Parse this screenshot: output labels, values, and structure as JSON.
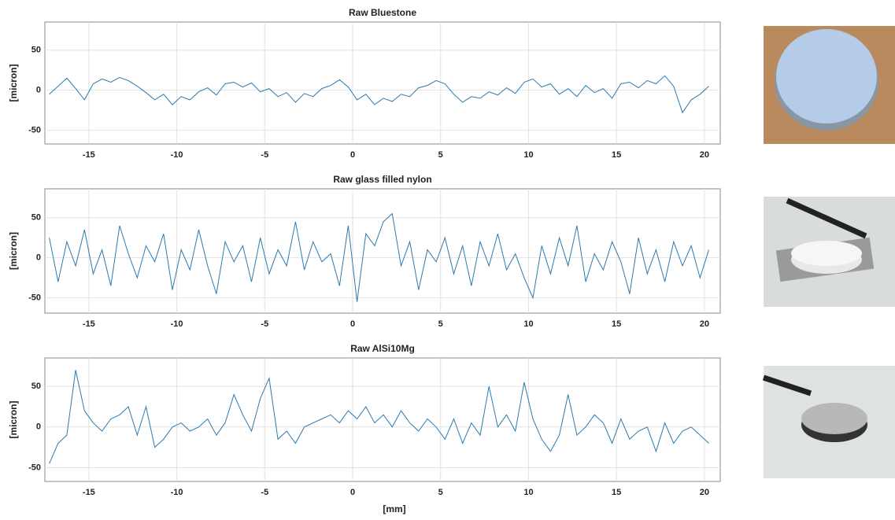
{
  "chart_data": [
    {
      "type": "line",
      "title": "Raw Bluestone",
      "ylabel": "[micron]",
      "color": "#2a7ab0",
      "grid": true,
      "xlim": [
        -17.5,
        20.9
      ],
      "ylim": [
        -67,
        85
      ],
      "xticks": [
        -15,
        -10,
        -5,
        0,
        5,
        10,
        15,
        20
      ],
      "yticks": [
        -50,
        0,
        50
      ],
      "x": [
        -17.25,
        -16.75,
        -16.25,
        -15.75,
        -15.25,
        -14.75,
        -14.25,
        -13.75,
        -13.25,
        -12.75,
        -12.25,
        -11.75,
        -11.25,
        -10.75,
        -10.25,
        -9.75,
        -9.25,
        -8.75,
        -8.25,
        -7.75,
        -7.25,
        -6.75,
        -6.25,
        -5.75,
        -5.25,
        -4.75,
        -4.25,
        -3.75,
        -3.25,
        -2.75,
        -2.25,
        -1.75,
        -1.25,
        -0.75,
        -0.25,
        0.25,
        0.75,
        1.25,
        1.75,
        2.25,
        2.75,
        3.25,
        3.75,
        4.25,
        4.75,
        5.25,
        5.75,
        6.25,
        6.75,
        7.25,
        7.75,
        8.25,
        8.75,
        9.25,
        9.75,
        10.25,
        10.75,
        11.25,
        11.75,
        12.25,
        12.75,
        13.25,
        13.75,
        14.25,
        14.75,
        15.25,
        15.75,
        16.25,
        16.75,
        17.25,
        17.75,
        18.25,
        18.75,
        19.25,
        19.75,
        20.25
      ],
      "values": [
        -5,
        5,
        15,
        2,
        -12,
        8,
        14,
        10,
        16,
        12,
        5,
        -3,
        -12,
        -5,
        -18,
        -8,
        -12,
        -2,
        3,
        -6,
        8,
        10,
        4,
        9,
        -2,
        2,
        -8,
        -3,
        -15,
        -4,
        -8,
        2,
        6,
        13,
        4,
        -12,
        -5,
        -18,
        -10,
        -14,
        -5,
        -8,
        3,
        6,
        12,
        8,
        -5,
        -15,
        -8,
        -10,
        -2,
        -6,
        3,
        -4,
        10,
        14,
        4,
        8,
        -5,
        2,
        -8,
        6,
        -3,
        2,
        -10,
        8,
        10,
        3,
        12,
        8,
        18,
        5,
        -28,
        -12,
        -5,
        5
      ]
    },
    {
      "type": "line",
      "title": "Raw glass filled nylon",
      "ylabel": "[micron]",
      "color": "#2a7ab0",
      "grid": true,
      "xlim": [
        -17.5,
        20.9
      ],
      "ylim": [
        -69,
        86
      ],
      "xticks": [
        -15,
        -10,
        -5,
        0,
        5,
        10,
        15,
        20
      ],
      "yticks": [
        -50,
        0,
        50
      ],
      "x": [
        -17.25,
        -16.75,
        -16.25,
        -15.75,
        -15.25,
        -14.75,
        -14.25,
        -13.75,
        -13.25,
        -12.75,
        -12.25,
        -11.75,
        -11.25,
        -10.75,
        -10.25,
        -9.75,
        -9.25,
        -8.75,
        -8.25,
        -7.75,
        -7.25,
        -6.75,
        -6.25,
        -5.75,
        -5.25,
        -4.75,
        -4.25,
        -3.75,
        -3.25,
        -2.75,
        -2.25,
        -1.75,
        -1.25,
        -0.75,
        -0.25,
        0.25,
        0.75,
        1.25,
        1.75,
        2.25,
        2.75,
        3.25,
        3.75,
        4.25,
        4.75,
        5.25,
        5.75,
        6.25,
        6.75,
        7.25,
        7.75,
        8.25,
        8.75,
        9.25,
        9.75,
        10.25,
        10.75,
        11.25,
        11.75,
        12.25,
        12.75,
        13.25,
        13.75,
        14.25,
        14.75,
        15.25,
        15.75,
        16.25,
        16.75,
        17.25,
        17.75,
        18.25,
        18.75,
        19.25,
        19.75,
        20.25
      ],
      "values": [
        25,
        -30,
        20,
        -10,
        35,
        -20,
        10,
        -35,
        40,
        5,
        -25,
        15,
        -5,
        30,
        -40,
        10,
        -15,
        35,
        -10,
        -45,
        20,
        -5,
        15,
        -30,
        25,
        -20,
        10,
        -10,
        45,
        -15,
        20,
        -5,
        5,
        -35,
        40,
        -55,
        30,
        15,
        45,
        55,
        -10,
        20,
        -40,
        10,
        -5,
        25,
        -20,
        15,
        -35,
        20,
        -10,
        30,
        -15,
        5,
        -25,
        -50,
        15,
        -20,
        25,
        -10,
        40,
        -30,
        5,
        -15,
        20,
        -5,
        -45,
        25,
        -20,
        10,
        -30,
        20,
        -10,
        15,
        -25,
        10
      ]
    },
    {
      "type": "line",
      "title": "Raw AlSi10Mg",
      "ylabel": "[micron]",
      "xlabel": "[mm]",
      "color": "#2a7ab0",
      "grid": true,
      "xlim": [
        -17.5,
        20.9
      ],
      "ylim": [
        -67,
        85
      ],
      "xticks": [
        -15,
        -10,
        -5,
        0,
        5,
        10,
        15,
        20
      ],
      "yticks": [
        -50,
        0,
        50
      ],
      "x": [
        -17.25,
        -16.75,
        -16.25,
        -15.75,
        -15.25,
        -14.75,
        -14.25,
        -13.75,
        -13.25,
        -12.75,
        -12.25,
        -11.75,
        -11.25,
        -10.75,
        -10.25,
        -9.75,
        -9.25,
        -8.75,
        -8.25,
        -7.75,
        -7.25,
        -6.75,
        -6.25,
        -5.75,
        -5.25,
        -4.75,
        -4.25,
        -3.75,
        -3.25,
        -2.75,
        -2.25,
        -1.75,
        -1.25,
        -0.75,
        -0.25,
        0.25,
        0.75,
        1.25,
        1.75,
        2.25,
        2.75,
        3.25,
        3.75,
        4.25,
        4.75,
        5.25,
        5.75,
        6.25,
        6.75,
        7.25,
        7.75,
        8.25,
        8.75,
        9.25,
        9.75,
        10.25,
        10.75,
        11.25,
        11.75,
        12.25,
        12.75,
        13.25,
        13.75,
        14.25,
        14.75,
        15.25,
        15.75,
        16.25,
        16.75,
        17.25,
        17.75,
        18.25,
        18.75,
        19.25,
        19.75,
        20.25
      ],
      "values": [
        -45,
        -20,
        -10,
        70,
        20,
        5,
        -5,
        10,
        15,
        25,
        -10,
        25,
        -25,
        -15,
        0,
        5,
        -5,
        0,
        10,
        -10,
        5,
        40,
        15,
        -5,
        35,
        60,
        -15,
        -5,
        -20,
        0,
        5,
        10,
        15,
        5,
        20,
        10,
        25,
        5,
        15,
        0,
        20,
        5,
        -5,
        10,
        0,
        -15,
        10,
        -20,
        5,
        -10,
        50,
        0,
        15,
        -5,
        55,
        10,
        -15,
        -30,
        -10,
        40,
        -10,
        0,
        15,
        5,
        -20,
        10,
        -15,
        -5,
        0,
        -30,
        5,
        -20,
        -5,
        0,
        -10,
        -20
      ]
    }
  ]
}
